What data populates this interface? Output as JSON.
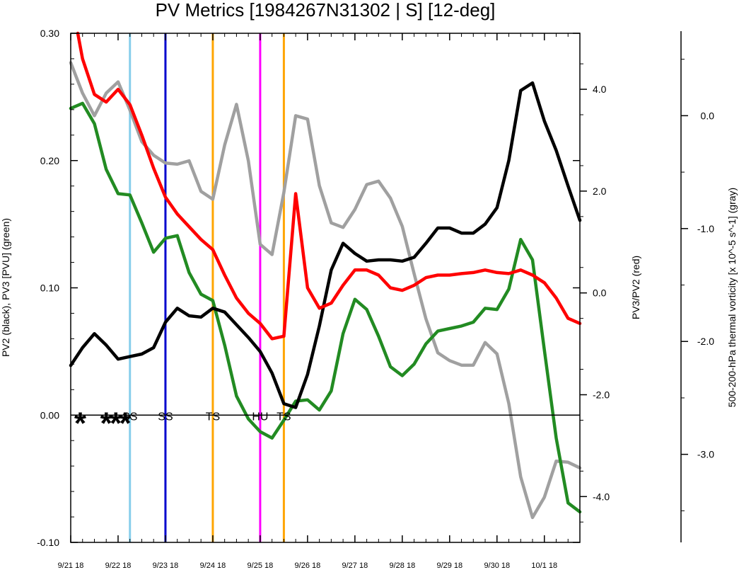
{
  "chart_data": {
    "type": "line",
    "title": "PV Metrics [1984267N31302 | S] [12-deg]",
    "x_start_day": 0,
    "x_end_day": 10.75,
    "x_tick_labels": [
      "9/21 18",
      "9/22 18",
      "9/23 18",
      "9/24 18",
      "9/25 18",
      "9/26 18",
      "9/27 18",
      "9/28 18",
      "9/29 18",
      "9/30 18",
      "10/1 18"
    ],
    "y_left": {
      "label": "PV2 (black), PV3 [PVU] (green)",
      "ylim": [
        -0.1,
        0.3
      ],
      "ticks": [
        "0.30",
        "0.20",
        "0.10",
        "0.00",
        "-0.10"
      ]
    },
    "y_right1": {
      "label": "PV3/PV2 (red)",
      "ylim": [
        -4.9,
        5.1
      ],
      "ticks": [
        "4.0",
        "2.0",
        "0.0",
        "-2.0",
        "-4.0"
      ]
    },
    "y_right2": {
      "label": "500-200-hPa thermal vorticity [x 10^-5 s^-1] (gray)",
      "ylim": [
        -3.78,
        0.73
      ],
      "ticks": [
        "0.0",
        "-1.0",
        "-2.0",
        "-3.0"
      ]
    },
    "zero_line": 0.0,
    "series": [
      {
        "name": "PV2",
        "color": "#000000",
        "axis": "left",
        "x": [
          0,
          0.25,
          0.5,
          0.75,
          1,
          1.25,
          1.5,
          1.75,
          2,
          2.25,
          2.5,
          2.75,
          3,
          3.25,
          3.5,
          3.75,
          4,
          4.25,
          4.5,
          4.75,
          5,
          5.25,
          5.5,
          5.75,
          6,
          6.25,
          6.5,
          6.75,
          7,
          7.25,
          7.5,
          7.75,
          8,
          8.25,
          8.5,
          8.75,
          9,
          9.25,
          9.5,
          9.75,
          10,
          10.25,
          10.5,
          10.75
        ],
        "values": [
          0.039,
          0.053,
          0.064,
          0.055,
          0.044,
          0.046,
          0.048,
          0.053,
          0.073,
          0.084,
          0.078,
          0.077,
          0.084,
          0.081,
          0.071,
          0.061,
          0.05,
          0.033,
          0.009,
          0.006,
          0.032,
          0.07,
          0.114,
          0.135,
          0.127,
          0.121,
          0.122,
          0.122,
          0.121,
          0.124,
          0.135,
          0.147,
          0.147,
          0.143,
          0.143,
          0.15,
          0.163,
          0.2,
          0.255,
          0.261,
          0.231,
          0.208,
          0.18,
          0.153
        ]
      },
      {
        "name": "PV3",
        "color": "#228b22",
        "axis": "left",
        "x": [
          0,
          0.25,
          0.5,
          0.75,
          1,
          1.25,
          1.5,
          1.75,
          2,
          2.25,
          2.5,
          2.75,
          3,
          3.25,
          3.5,
          3.75,
          4,
          4.25,
          4.5,
          4.75,
          5,
          5.25,
          5.5,
          5.75,
          6,
          6.25,
          6.5,
          6.75,
          7,
          7.25,
          7.5,
          7.75,
          8,
          8.25,
          8.5,
          8.75,
          9,
          9.25,
          9.5,
          9.75,
          10,
          10.25,
          10.5,
          10.75
        ],
        "values": [
          0.241,
          0.245,
          0.229,
          0.193,
          0.174,
          0.173,
          0.151,
          0.128,
          0.139,
          0.141,
          0.112,
          0.095,
          0.09,
          0.055,
          0.015,
          -0.003,
          -0.013,
          -0.018,
          -0.004,
          0.011,
          0.012,
          0.004,
          0.019,
          0.064,
          0.091,
          0.083,
          0.062,
          0.038,
          0.031,
          0.04,
          0.056,
          0.066,
          0.068,
          0.07,
          0.073,
          0.084,
          0.083,
          0.099,
          0.138,
          0.122,
          0.051,
          -0.018,
          -0.069,
          -0.076
        ]
      },
      {
        "name": "PV3/PV2",
        "color": "#ff0000",
        "axis": "right1",
        "x": [
          0.15,
          0.25,
          0.5,
          0.75,
          1,
          1.25,
          1.5,
          1.75,
          2,
          2.25,
          2.5,
          2.75,
          3,
          3.25,
          3.5,
          3.75,
          4,
          4.25,
          4.5,
          4.75,
          5,
          5.25,
          5.5,
          5.75,
          6,
          6.25,
          6.5,
          6.75,
          7,
          7.25,
          7.5,
          7.75,
          8,
          8.25,
          8.5,
          8.75,
          9,
          9.25,
          9.5,
          9.75,
          10,
          10.25,
          10.5,
          10.75
        ],
        "values": [
          5.1,
          4.6,
          3.9,
          3.75,
          4.0,
          3.7,
          3.1,
          2.45,
          1.88,
          1.55,
          1.3,
          1.05,
          0.85,
          0.35,
          -0.1,
          -0.4,
          -0.6,
          -0.9,
          -0.85,
          1.95,
          0.1,
          -0.3,
          -0.2,
          0.15,
          0.45,
          0.45,
          0.35,
          0.1,
          0.05,
          0.15,
          0.3,
          0.35,
          0.35,
          0.38,
          0.4,
          0.45,
          0.4,
          0.38,
          0.45,
          0.35,
          0.2,
          -0.1,
          -0.5,
          -0.6
        ]
      },
      {
        "name": "thermal vorticity",
        "color": "#a0a0a0",
        "axis": "right2",
        "x": [
          0,
          0.25,
          0.5,
          0.75,
          1,
          1.25,
          1.5,
          1.75,
          2,
          2.25,
          2.5,
          2.75,
          3,
          3.25,
          3.5,
          3.75,
          4,
          4.25,
          4.5,
          4.75,
          5,
          5.25,
          5.5,
          5.75,
          6,
          6.25,
          6.5,
          6.75,
          7,
          7.25,
          7.5,
          7.75,
          8,
          8.25,
          8.5,
          8.75,
          9,
          9.25,
          9.5,
          9.75,
          10,
          10.25,
          10.5,
          10.75
        ],
        "values": [
          0.47,
          0.2,
          0.0,
          0.2,
          0.3,
          0.05,
          -0.23,
          -0.35,
          -0.42,
          -0.43,
          -0.4,
          -0.67,
          -0.74,
          -0.26,
          0.1,
          -0.4,
          -1.14,
          -1.23,
          -0.68,
          0.0,
          -0.03,
          -0.62,
          -0.95,
          -0.99,
          -0.83,
          -0.61,
          -0.58,
          -0.73,
          -0.98,
          -1.4,
          -1.8,
          -2.1,
          -2.17,
          -2.21,
          -2.21,
          -2.01,
          -2.11,
          -2.55,
          -3.2,
          -3.56,
          -3.38,
          -3.06,
          -3.07,
          -3.12
        ]
      }
    ],
    "vertical_lines": [
      {
        "x": 1.25,
        "color": "#87ceeb"
      },
      {
        "x": 2.0,
        "color": "#0000cd"
      },
      {
        "x": 3.0,
        "color": "#ffa500"
      },
      {
        "x": 4.0,
        "color": "#ff00ff"
      },
      {
        "x": 4.5,
        "color": "#ffa500"
      }
    ],
    "storm_marks": [
      {
        "x": 0.2,
        "label": "*"
      },
      {
        "x": 0.75,
        "label": "*"
      },
      {
        "x": 0.95,
        "label": "*"
      },
      {
        "x": 1.15,
        "label": "*"
      }
    ],
    "storm_labels": [
      {
        "x": 1.25,
        "label": "SS"
      },
      {
        "x": 2.0,
        "label": "SS"
      },
      {
        "x": 3.0,
        "label": "TS"
      },
      {
        "x": 4.0,
        "label": "HU"
      },
      {
        "x": 4.5,
        "label": "TS"
      }
    ]
  }
}
